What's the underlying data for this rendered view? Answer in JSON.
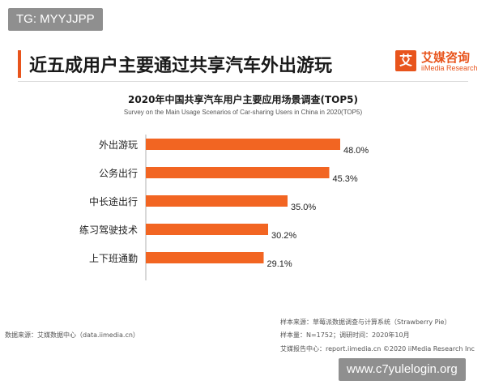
{
  "badge": {
    "text": "TG: MYYJJPP"
  },
  "page_title": "近五成用户主要通过共享汽车外出游玩",
  "logo": {
    "icon_char": "艾",
    "name_cn": "艾媒咨询",
    "name_en": "iiMedia Research"
  },
  "colors": {
    "accent": "#e8541c",
    "bar": "#f26522",
    "badge_bg": "#8f8f8f"
  },
  "chart_data": {
    "type": "bar",
    "orientation": "horizontal",
    "title": "2020年中国共享汽车用户主要应用场景调查(TOP5)",
    "subtitle": "Survey on the Main Usage Scenarios of Car-sharing Users in China in 2020(TOP5)",
    "categories": [
      "外出游玩",
      "公务出行",
      "中长途出行",
      "练习驾驶技术",
      "上下班通勤"
    ],
    "values": [
      48.0,
      45.3,
      35.0,
      30.2,
      29.1
    ],
    "value_labels": [
      "48.0%",
      "45.3%",
      "35.0%",
      "30.2%",
      "29.1%"
    ],
    "xlabel": "",
    "ylabel": "",
    "xlim": [
      0,
      55
    ],
    "grid": false,
    "legend": "none"
  },
  "footer": {
    "data_source": "数据来源：艾媒数据中心（data.iimedia.cn）",
    "sample_source": "样本来源：草莓派数据调查与计算系统（Strawberry Pie）",
    "sample_size": "样本量：N=1752；调研时间：2020年10月",
    "report": "艾媒报告中心：report.iimedia.cn ©2020  iiMedia Research  Inc"
  },
  "watermark": {
    "text": "www.c7yulelogin.org"
  }
}
